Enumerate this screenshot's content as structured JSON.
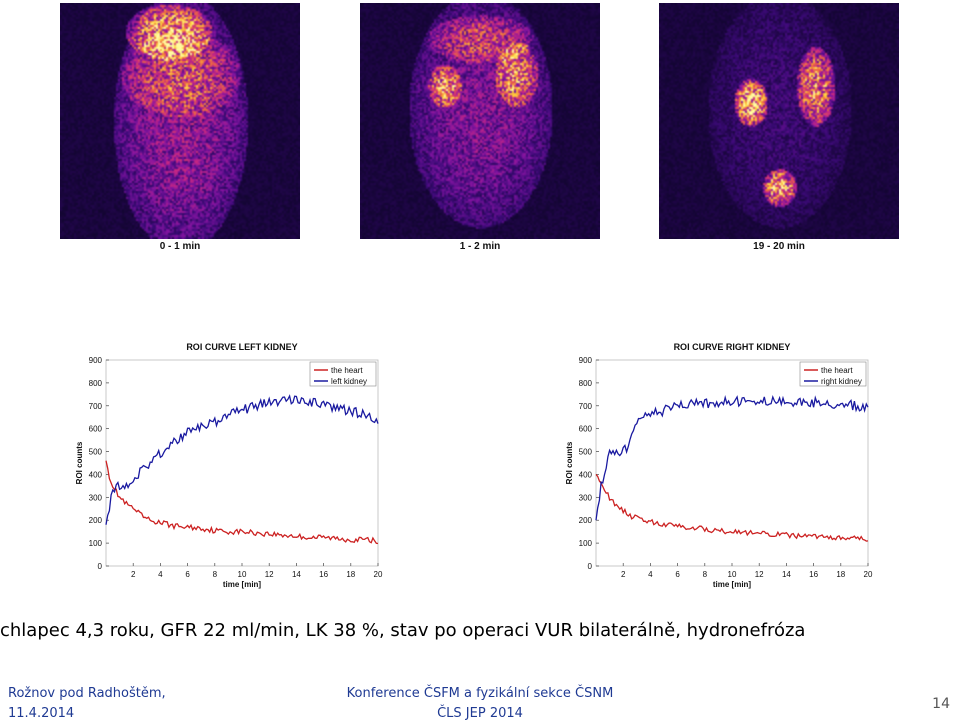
{
  "scans": [
    {
      "label": "0 - 1 min"
    },
    {
      "label": "1 - 2 min"
    },
    {
      "label": "19 - 20 min"
    }
  ],
  "chart_data": [
    {
      "type": "line",
      "title": "ROI CURVE LEFT KIDNEY",
      "xlabel": "time [min]",
      "ylabel": "ROI counts",
      "xlim": [
        0,
        20
      ],
      "ylim": [
        0,
        900
      ],
      "xticks": [
        2,
        4,
        6,
        8,
        10,
        12,
        14,
        16,
        18,
        20
      ],
      "yticks": [
        0,
        100,
        200,
        300,
        400,
        500,
        600,
        700,
        800,
        900
      ],
      "legend_position": "top-right",
      "series": [
        {
          "name": "the heart",
          "color": "#cc2222",
          "x": [
            0,
            0.3,
            0.6,
            1,
            1.5,
            2,
            2.5,
            3,
            3.5,
            4,
            5,
            6,
            7,
            8,
            9,
            10,
            11,
            12,
            13,
            14,
            15,
            16,
            17,
            18,
            19,
            20
          ],
          "y": [
            460,
            380,
            340,
            300,
            270,
            250,
            225,
            205,
            195,
            190,
            175,
            170,
            165,
            155,
            150,
            150,
            145,
            140,
            135,
            130,
            125,
            125,
            120,
            115,
            115,
            110
          ]
        },
        {
          "name": "left kidney",
          "color": "#1a1aa0",
          "x": [
            0,
            0.3,
            0.6,
            1,
            1.5,
            2,
            2.5,
            3,
            3.5,
            4,
            5,
            6,
            7,
            8,
            9,
            10,
            11,
            12,
            13,
            14,
            15,
            16,
            17,
            18,
            19,
            20
          ],
          "y": [
            180,
            280,
            330,
            350,
            340,
            380,
            410,
            440,
            470,
            490,
            540,
            580,
            610,
            630,
            660,
            680,
            700,
            710,
            720,
            730,
            720,
            700,
            690,
            680,
            660,
            640
          ]
        }
      ]
    },
    {
      "type": "line",
      "title": "ROI CURVE RIGHT KIDNEY",
      "xlabel": "time [min]",
      "ylabel": "ROI counts",
      "xlim": [
        0,
        20
      ],
      "ylim": [
        0,
        900
      ],
      "xticks": [
        2,
        4,
        6,
        8,
        10,
        12,
        14,
        16,
        18,
        20
      ],
      "yticks": [
        0,
        100,
        200,
        300,
        400,
        500,
        600,
        700,
        800,
        900
      ],
      "legend_position": "top-right",
      "series": [
        {
          "name": "the heart",
          "color": "#cc2222",
          "x": [
            0,
            0.3,
            0.6,
            1,
            1.5,
            2,
            2.5,
            3,
            3.5,
            4,
            5,
            6,
            7,
            8,
            9,
            10,
            11,
            12,
            13,
            14,
            15,
            16,
            17,
            18,
            19,
            20
          ],
          "y": [
            400,
            380,
            330,
            300,
            260,
            240,
            220,
            210,
            200,
            195,
            180,
            175,
            170,
            160,
            155,
            150,
            145,
            140,
            140,
            135,
            130,
            130,
            125,
            120,
            120,
            115
          ]
        },
        {
          "name": "right kidney",
          "color": "#1a1aa0",
          "x": [
            0,
            0.3,
            0.6,
            1,
            1.5,
            2,
            2.5,
            3,
            3.5,
            4,
            5,
            6,
            7,
            8,
            9,
            10,
            11,
            12,
            13,
            14,
            15,
            16,
            17,
            18,
            19,
            20
          ],
          "y": [
            200,
            330,
            390,
            500,
            490,
            500,
            540,
            620,
            650,
            660,
            680,
            700,
            705,
            710,
            715,
            720,
            720,
            720,
            725,
            720,
            720,
            715,
            710,
            705,
            700,
            700
          ]
        }
      ]
    }
  ],
  "caption": "chlapec 4,3 roku, GFR 22 ml/min, LK 38 %, stav po operaci VUR bilaterálně, hydronefróza",
  "footer": {
    "left_line1": "Rožnov pod Radhoštěm,",
    "left_line2": "11.4.2014",
    "center_line1": "Konference ČSFM a fyzikální sekce ČSNM",
    "center_line2": "ČLS JEP 2014",
    "page_number": "14"
  }
}
